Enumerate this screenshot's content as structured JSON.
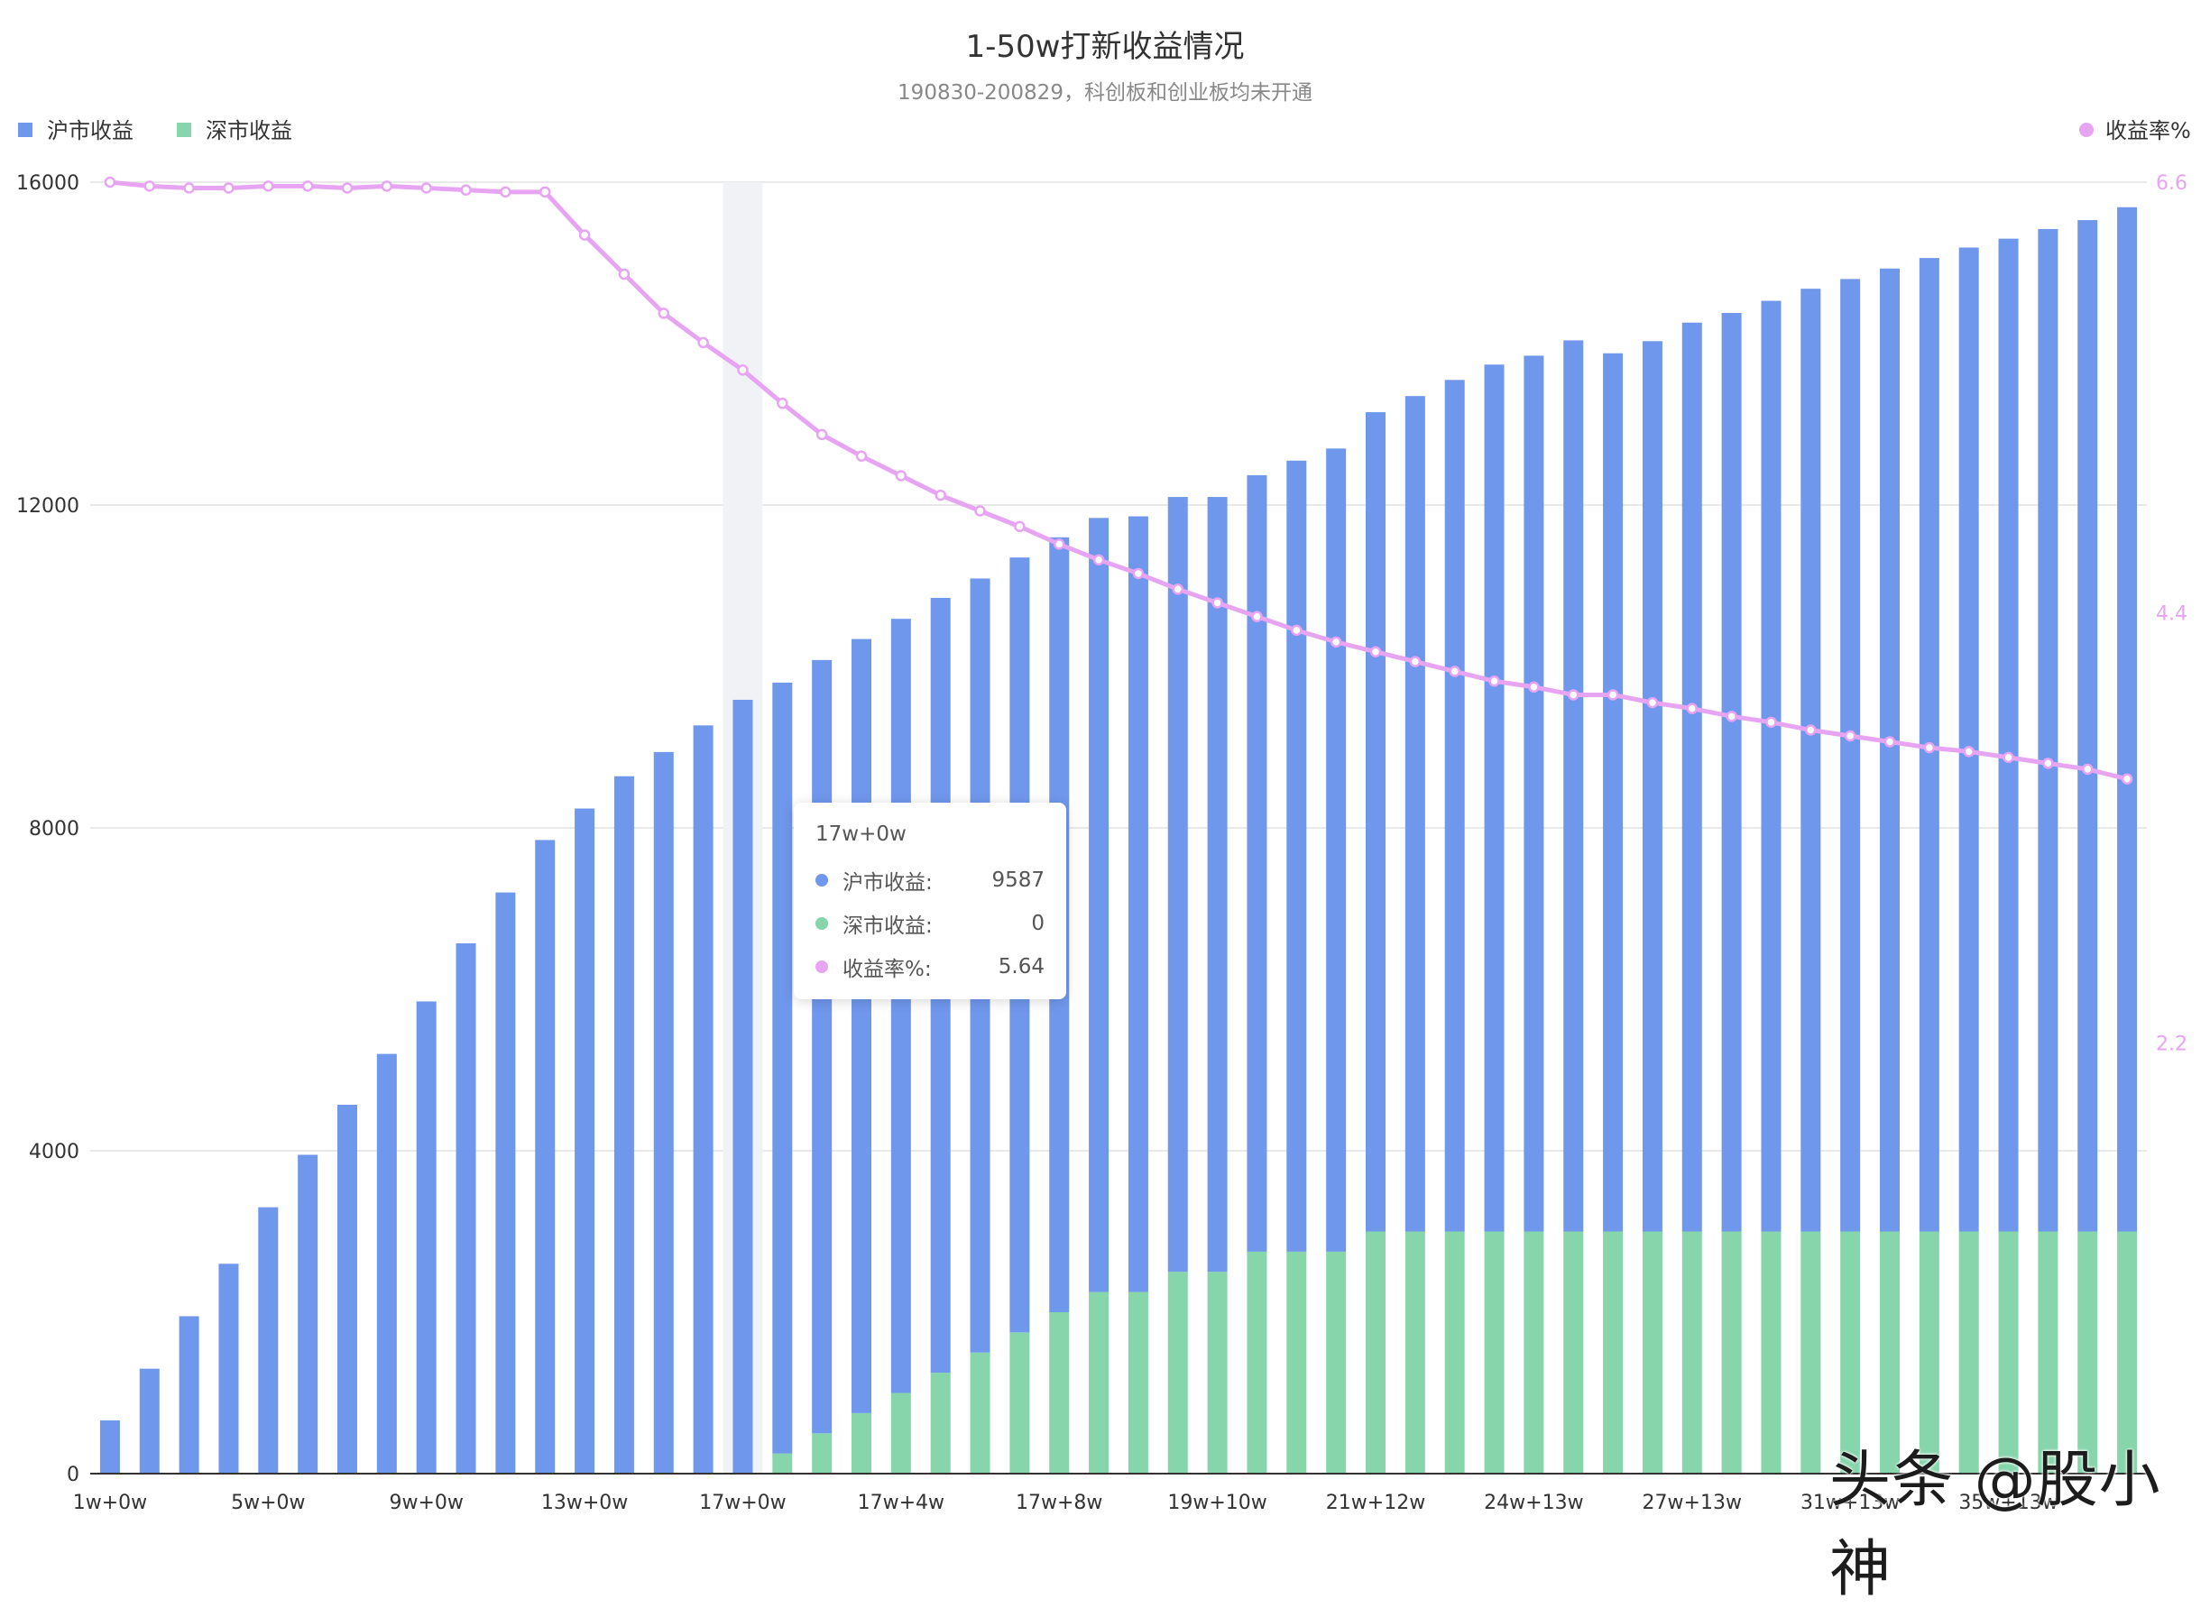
{
  "chart_data": {
    "type": "bar",
    "title": "1-50w打新收益情况",
    "subtitle": "190830-200829，科创板和创业板均未开通",
    "stacked": true,
    "grid": true,
    "legend": {
      "left": [
        "沪市收益",
        "深市收益"
      ],
      "right": [
        "收益率%"
      ]
    },
    "colors": {
      "sh": "#6F97EC",
      "sz": "#86D5AB",
      "rate": "#E7A4F2",
      "highlight": "#F0F2F6",
      "grid": "#E2E2E2",
      "axis": "#333333"
    },
    "y_left": {
      "min": 0,
      "max": 16000,
      "ticks": [
        "0",
        "4000",
        "8000",
        "12000",
        "16000"
      ]
    },
    "y_right": {
      "min": 0,
      "max": 6.6,
      "ticks": [
        "2.2",
        "4.4",
        "6.6"
      ]
    },
    "x_tick_labels": [
      {
        "index": 0,
        "label": "1w+0w"
      },
      {
        "index": 4,
        "label": "5w+0w"
      },
      {
        "index": 8,
        "label": "9w+0w"
      },
      {
        "index": 12,
        "label": "13w+0w"
      },
      {
        "index": 16,
        "label": "17w+0w"
      },
      {
        "index": 20,
        "label": "17w+4w"
      },
      {
        "index": 24,
        "label": "17w+8w"
      },
      {
        "index": 28,
        "label": "19w+10w"
      },
      {
        "index": 32,
        "label": "21w+12w"
      },
      {
        "index": 36,
        "label": "24w+13w"
      },
      {
        "index": 40,
        "label": "27w+13w"
      },
      {
        "index": 44,
        "label": "31w+13w"
      },
      {
        "index": 48,
        "label": "35w+13w"
      }
    ],
    "series": [
      {
        "name": "沪市收益",
        "axis": "left",
        "values": [
          660,
          1300,
          1950,
          2600,
          3300,
          3950,
          4570,
          5200,
          5850,
          6570,
          7200,
          7850,
          8240,
          8640,
          8940,
          9270,
          9587,
          9550,
          9580,
          9590,
          9590,
          9600,
          9590,
          9600,
          9600,
          9590,
          9610,
          9600,
          9600,
          9620,
          9800,
          9950,
          10150,
          10350,
          10550,
          10740,
          10850,
          11040,
          10880,
          11030,
          11260,
          11380,
          11530,
          11680,
          11800,
          11930,
          12060,
          12190,
          12300,
          12420,
          12530,
          12690
        ]
      },
      {
        "name": "深市收益",
        "axis": "left",
        "values": [
          0,
          0,
          0,
          0,
          0,
          0,
          0,
          0,
          0,
          0,
          0,
          0,
          0,
          0,
          0,
          0,
          0,
          250,
          500,
          750,
          1000,
          1250,
          1500,
          1750,
          2000,
          2250,
          2250,
          2500,
          2500,
          2750,
          2750,
          2750,
          3000,
          3000,
          3000,
          3000,
          3000,
          3000,
          3000,
          3000,
          3000,
          3000,
          3000,
          3000,
          3000,
          3000,
          3000,
          3000,
          3000,
          3000,
          3000,
          3000
        ]
      },
      {
        "name": "收益率%",
        "axis": "right",
        "type": "line",
        "values": [
          6.6,
          6.58,
          6.57,
          6.57,
          6.58,
          6.58,
          6.57,
          6.58,
          6.57,
          6.56,
          6.55,
          6.55,
          6.33,
          6.13,
          5.93,
          5.78,
          5.64,
          5.47,
          5.31,
          5.2,
          5.1,
          5.0,
          4.92,
          4.84,
          4.75,
          4.67,
          4.6,
          4.52,
          4.45,
          4.38,
          4.31,
          4.25,
          4.2,
          4.15,
          4.1,
          4.05,
          4.02,
          3.98,
          3.98,
          3.94,
          3.91,
          3.87,
          3.84,
          3.8,
          3.77,
          3.74,
          3.71,
          3.69,
          3.66,
          3.63,
          3.6,
          3.55
        ]
      }
    ]
  },
  "tooltip": {
    "title": "17w+0w",
    "rows": [
      {
        "name": "沪市收益:",
        "value": "9587",
        "color": "#6F97EC"
      },
      {
        "name": "深市收益:",
        "value": "0",
        "color": "#86D5AB"
      },
      {
        "name": "收益率%:",
        "value": "5.64",
        "color": "#E7A4F2"
      }
    ]
  },
  "watermark": "头条 @股小神"
}
